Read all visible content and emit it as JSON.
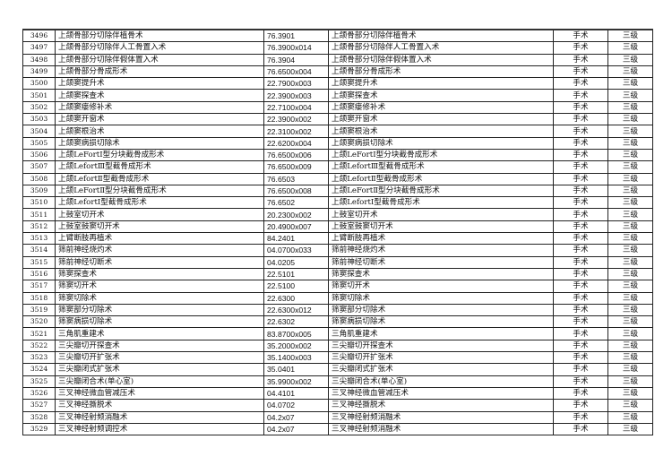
{
  "rows": [
    [
      "3496",
      "上颌骨部分切除伴植骨术",
      "76.3901",
      "上颌骨部分切除伴植骨术",
      "手术",
      "三级"
    ],
    [
      "3497",
      "上颌骨部分切除伴人工骨置入术",
      "76.3900x014",
      "上颌骨部分切除伴人工骨置入术",
      "手术",
      "三级"
    ],
    [
      "3498",
      "上颌骨部分切除伴假体置入术",
      "76.3904",
      "上颌骨部分切除伴假体置入术",
      "手术",
      "三级"
    ],
    [
      "3499",
      "上颌骨部分骨成形术",
      "76.6500x004",
      "上颌骨部分骨成形术",
      "手术",
      "三级"
    ],
    [
      "3500",
      "上颌窦提升术",
      "22.7900x003",
      "上颌窦提升术",
      "手术",
      "三级"
    ],
    [
      "3501",
      "上颌窦探查术",
      "22.3900x003",
      "上颌窦探查术",
      "手术",
      "三级"
    ],
    [
      "3502",
      "上颌窦瘘修补术",
      "22.7100x004",
      "上颌窦瘘修补术",
      "手术",
      "三级"
    ],
    [
      "3503",
      "上颌窦开窗术",
      "22.3900x002",
      "上颌窦开窗术",
      "手术",
      "三级"
    ],
    [
      "3504",
      "上颌窦根治术",
      "22.3100x002",
      "上颌窦根治术",
      "手术",
      "三级"
    ],
    [
      "3505",
      "上颌窦病损切除术",
      "22.6200x004",
      "上颌窦病损切除术",
      "手术",
      "三级"
    ],
    [
      "3506",
      "上颌LeFortI型分块截骨成形术",
      "76.6500x006",
      "上颌LeFortI型分块截骨成形术",
      "手术",
      "三级"
    ],
    [
      "3507",
      "上颌LefortⅢ型截骨成形术",
      "76.6500x009",
      "上颌LefortⅢ型截骨成形术",
      "手术",
      "三级"
    ],
    [
      "3508",
      "上颌LefortⅡ型截骨成形术",
      "76.6503",
      "上颌LefortⅡ型截骨成形术",
      "手术",
      "三级"
    ],
    [
      "3509",
      "上颌LeFortⅡ型分块截骨成形术",
      "76.6500x008",
      "上颌LeFortⅡ型分块截骨成形术",
      "手术",
      "三级"
    ],
    [
      "3510",
      "上颌LefortⅠ型截骨成形术",
      "76.6502",
      "上颌LefortⅠ型截骨成形术",
      "手术",
      "三级"
    ],
    [
      "3511",
      "上鼓室切开术",
      "20.2300x002",
      "上鼓室切开术",
      "手术",
      "三级"
    ],
    [
      "3512",
      "上鼓室鼓窦切开术",
      "20.4900x007",
      "上鼓室鼓窦切开术",
      "手术",
      "三级"
    ],
    [
      "3513",
      "上臂断肢再植术",
      "84.2401",
      "上臂断肢再植术",
      "手术",
      "三级"
    ],
    [
      "3514",
      "筛前神经烧灼术",
      "04.0700x033",
      "筛前神经烧灼术",
      "手术",
      "三级"
    ],
    [
      "3515",
      "筛前神经切断术",
      "04.0205",
      "筛前神经切断术",
      "手术",
      "三级"
    ],
    [
      "3516",
      "筛窦探查术",
      "22.5101",
      "筛窦探查术",
      "手术",
      "三级"
    ],
    [
      "3517",
      "筛窦切开术",
      "22.5100",
      "筛窦切开术",
      "手术",
      "三级"
    ],
    [
      "3518",
      "筛窦切除术",
      "22.6300",
      "筛窦切除术",
      "手术",
      "三级"
    ],
    [
      "3519",
      "筛窦部分切除术",
      "22.6300x012",
      "筛窦部分切除术",
      "手术",
      "三级"
    ],
    [
      "3520",
      "筛窦病损切除术",
      "22.6302",
      "筛窦病损切除术",
      "手术",
      "三级"
    ],
    [
      "3521",
      "三角肌重建术",
      "83.8700x005",
      "三角肌重建术",
      "手术",
      "三级"
    ],
    [
      "3522",
      "三尖瓣切开探查术",
      "35.2000x002",
      "三尖瓣切开探查术",
      "手术",
      "三级"
    ],
    [
      "3523",
      "三尖瓣切开扩张术",
      "35.1400x003",
      "三尖瓣切开扩张术",
      "手术",
      "三级"
    ],
    [
      "3524",
      "三尖瓣闭式扩张术",
      "35.0401",
      "三尖瓣闭式扩张术",
      "手术",
      "三级"
    ],
    [
      "3525",
      "三尖瓣闭合术(单心室)",
      "35.9900x002",
      "三尖瓣闭合术(单心室)",
      "手术",
      "三级"
    ],
    [
      "3526",
      "三叉神经微血管减压术",
      "04.4101",
      "三叉神经微血管减压术",
      "手术",
      "三级"
    ],
    [
      "3527",
      "三叉神经撕脱术",
      "04.0702",
      "三叉神经撕脱术",
      "手术",
      "三级"
    ],
    [
      "3528",
      "三叉神经射频消融术",
      "04.2x07",
      "三叉神经射频消融术",
      "手术",
      "三级"
    ],
    [
      "3529",
      "三叉神经射频调控术",
      "04.2x07",
      "三叉神经射频消融术",
      "手术",
      "三级"
    ]
  ]
}
